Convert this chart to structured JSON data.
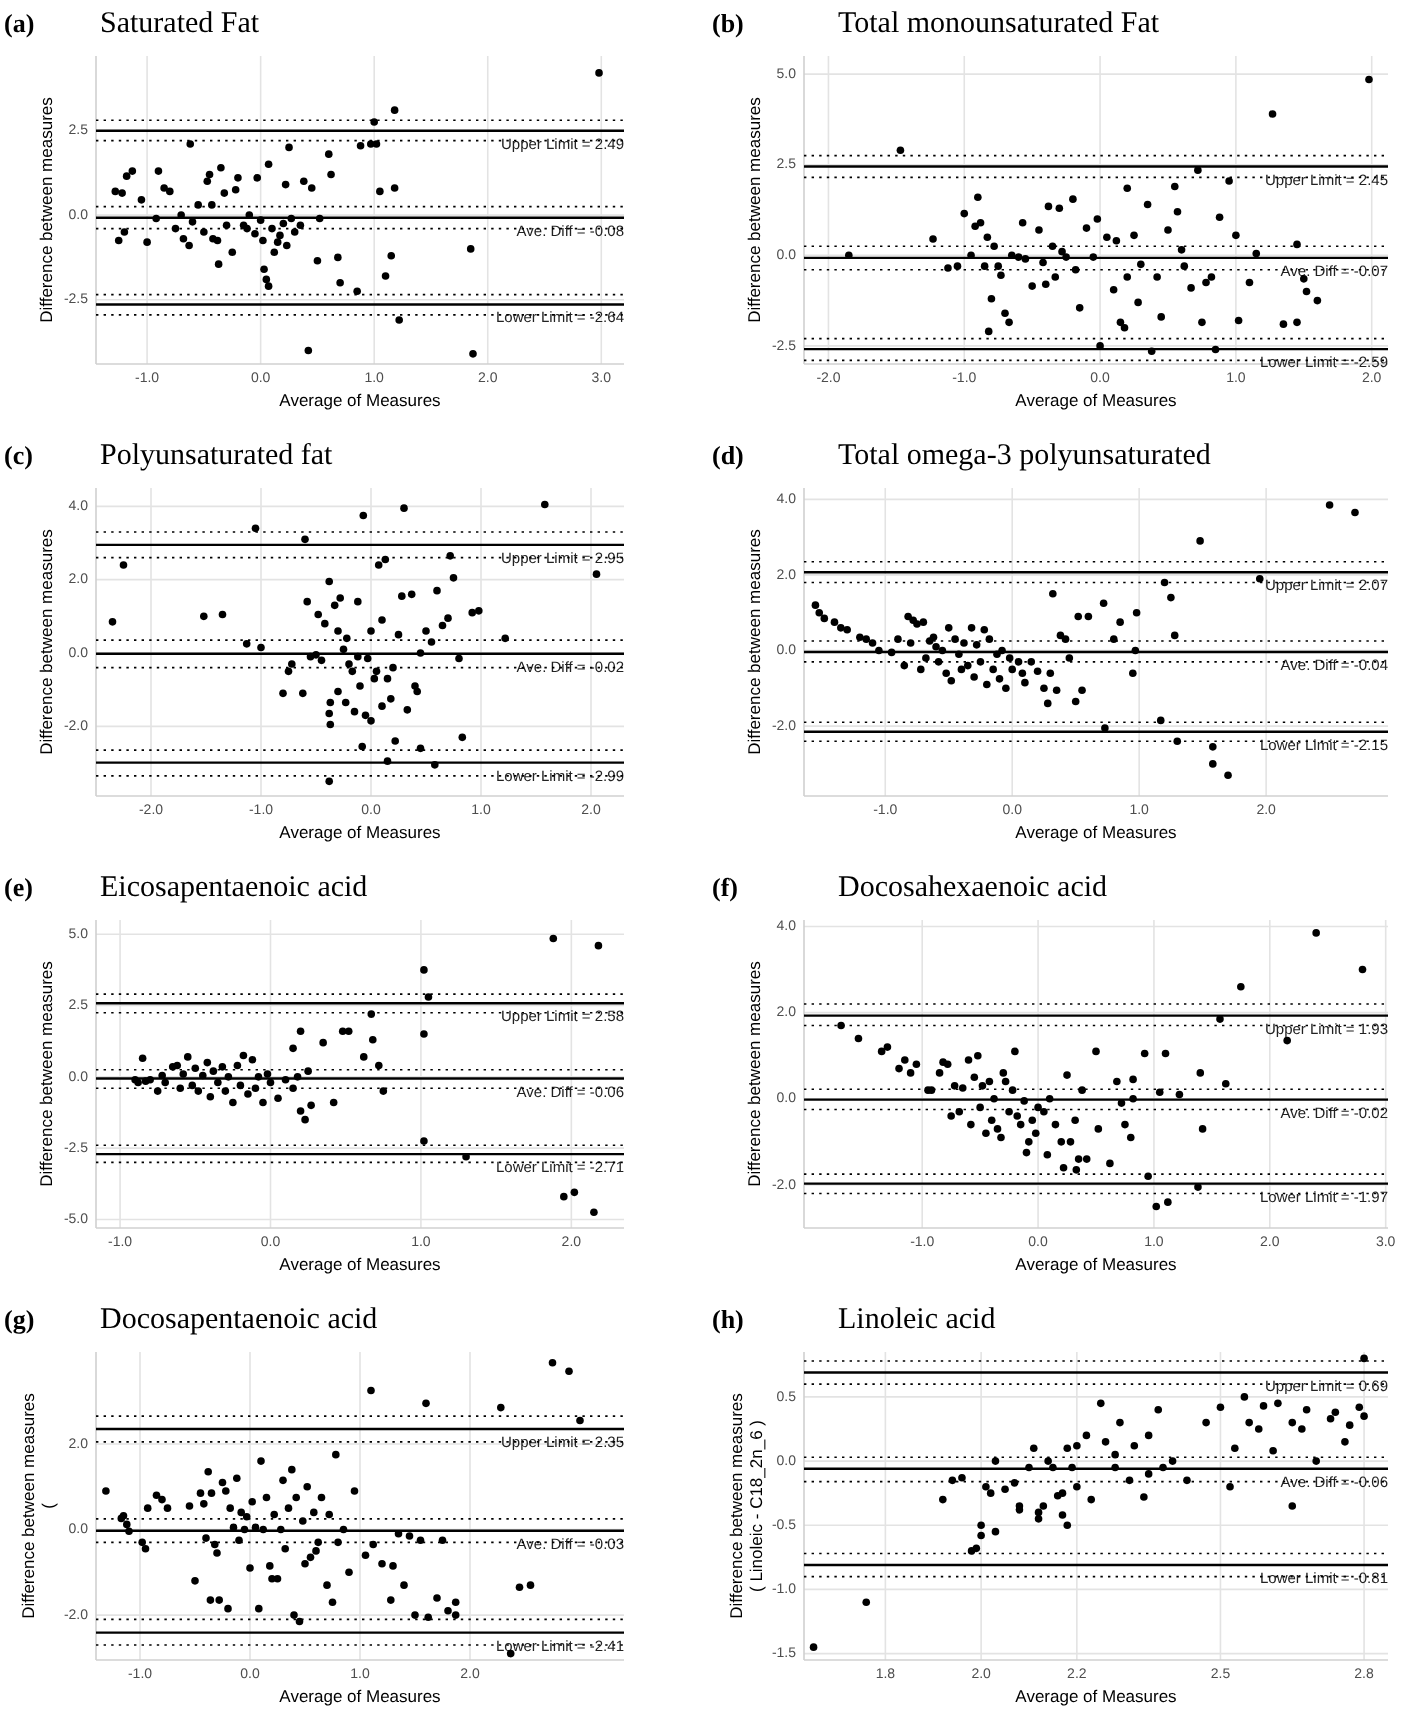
{
  "chart_data": [
    {
      "type": "scatter",
      "annotations": [
        "(a)"
      ],
      "title": "Saturated Fat",
      "xlabel": "Average of Measures",
      "ylabel": "Difference between measures",
      "grid": true,
      "marker": "circle",
      "xlim": [
        -1.45,
        3.2
      ],
      "ylim": [
        -4.4,
        4.7
      ],
      "xticks": [
        {
          "value": -1,
          "label": "-1.0"
        },
        {
          "value": 0,
          "label": "0.0"
        },
        {
          "value": 1,
          "label": "1.0"
        },
        {
          "value": 2,
          "label": "2.0"
        },
        {
          "value": 3,
          "label": "3.0"
        }
      ],
      "yticks": [
        -2.5,
        {
          "value": 0,
          "label": "0.0"
        },
        2.5
      ],
      "ref_lines": [
        {
          "axis": "y",
          "value": 2.49,
          "label": "Upper Limit = 2.49"
        },
        {
          "axis": "y",
          "value": 2.8,
          "line_style": "dotted"
        },
        {
          "axis": "y",
          "value": 2.2,
          "line_style": "dotted"
        },
        {
          "axis": "y",
          "value": -0.08,
          "label": "Ave. Diff = -0.08"
        },
        {
          "axis": "y",
          "value": 0.25,
          "line_style": "dotted"
        },
        {
          "axis": "y",
          "value": -0.4,
          "line_style": "dotted"
        },
        {
          "axis": "y",
          "value": -2.64,
          "label": "Lower Limit = -2.64"
        },
        {
          "axis": "y",
          "value": -2.35,
          "line_style": "dotted"
        },
        {
          "axis": "y",
          "value": -2.95,
          "line_style": "dotted"
        }
      ],
      "series": [
        {
          "color": "#000000",
          "x": [
            -1.28,
            -1.22,
            -1.18,
            -1.13,
            -1.05,
            -1.0,
            -1.25,
            -1.2,
            -0.92,
            -0.9,
            -0.85,
            -0.8,
            -0.75,
            -0.7,
            -0.68,
            -0.63,
            -0.62,
            -0.6,
            -0.55,
            -0.5,
            -0.47,
            -0.45,
            -0.43,
            -0.42,
            -0.38,
            -0.37,
            -0.35,
            -0.32,
            -0.3,
            -0.25,
            -0.22,
            -0.2,
            -0.15,
            -0.12,
            -0.1,
            -0.05,
            -0.03,
            0.0,
            0.02,
            0.03,
            0.05,
            0.07,
            0.07,
            0.1,
            0.12,
            0.15,
            0.17,
            0.2,
            0.22,
            0.23,
            0.25,
            0.27,
            0.3,
            0.35,
            0.38,
            0.45,
            0.42,
            0.5,
            0.52,
            0.6,
            0.62,
            0.68,
            0.7,
            0.85,
            0.88,
            0.97,
            1.0,
            1.02,
            1.05,
            1.1,
            1.15,
            1.18,
            1.18,
            1.22,
            1.85,
            1.87,
            2.98
          ],
          "values": [
            0.7,
            0.65,
            1.15,
            1.3,
            0.45,
            -0.8,
            -0.75,
            -0.5,
            -0.1,
            1.3,
            0.8,
            0.7,
            -0.4,
            0.0,
            -0.7,
            -0.9,
            2.1,
            -0.2,
            0.3,
            -0.5,
            1.0,
            1.2,
            0.3,
            -0.7,
            -0.75,
            -1.45,
            1.4,
            0.65,
            -0.3,
            -1.1,
            0.75,
            1.1,
            -0.3,
            -0.4,
            0.0,
            -0.55,
            1.1,
            -0.15,
            -0.75,
            -1.6,
            -1.9,
            -2.1,
            1.5,
            -0.4,
            -1.1,
            -0.8,
            -0.6,
            -0.25,
            0.9,
            -0.9,
            2.0,
            -0.1,
            -0.5,
            -0.3,
            1.0,
            0.8,
            -4.0,
            -1.35,
            -0.1,
            1.8,
            1.2,
            -1.25,
            -2.0,
            -2.25,
            2.05,
            2.1,
            2.75,
            2.1,
            0.7,
            -1.8,
            -1.2,
            0.8,
            3.1,
            -3.1,
            -1.0,
            -4.1,
            4.2
          ]
        }
      ]
    },
    {
      "type": "scatter",
      "annotations": [
        "(b)"
      ],
      "title": "Total monounsaturated Fat",
      "xlabel": "Average of Measures",
      "ylabel": "Difference between measures",
      "grid": true,
      "marker": "circle",
      "xlim": [
        -2.18,
        2.12
      ],
      "ylim": [
        -3.0,
        5.5
      ],
      "xticks": [
        {
          "value": -2,
          "label": "-2.0"
        },
        {
          "value": -1,
          "label": "-1.0"
        },
        {
          "value": 0,
          "label": "0.0"
        },
        {
          "value": 1,
          "label": "1.0"
        },
        {
          "value": 2,
          "label": "2.0"
        }
      ],
      "yticks": [
        -2.5,
        {
          "value": 0,
          "label": "0.0"
        },
        2.5,
        {
          "value": 5,
          "label": "5.0"
        }
      ],
      "ref_lines": [
        {
          "axis": "y",
          "value": 2.45,
          "label": "Upper Limit = 2.45"
        },
        {
          "axis": "y",
          "value": 2.75,
          "line_style": "dotted"
        },
        {
          "axis": "y",
          "value": 2.15,
          "line_style": "dotted"
        },
        {
          "axis": "y",
          "value": -0.07,
          "label": "Ave. Diff = -0.07"
        },
        {
          "axis": "y",
          "value": 0.25,
          "line_style": "dotted"
        },
        {
          "axis": "y",
          "value": -0.4,
          "line_style": "dotted"
        },
        {
          "axis": "y",
          "value": -2.59,
          "label": "Lower Limit = -2.59"
        },
        {
          "axis": "y",
          "value": -2.3,
          "line_style": "dotted"
        },
        {
          "axis": "y",
          "value": -2.9,
          "line_style": "dotted"
        }
      ],
      "series": [
        {
          "color": "#000000",
          "x": [
            -1.85,
            -1.47,
            -1.23,
            -1.12,
            -1.05,
            -1.0,
            -0.95,
            -0.92,
            -0.9,
            -0.88,
            -0.85,
            -0.83,
            -0.82,
            -0.8,
            -0.78,
            -0.75,
            -0.73,
            -0.7,
            -0.67,
            -0.65,
            -0.6,
            -0.57,
            -0.55,
            -0.5,
            -0.45,
            -0.42,
            -0.4,
            -0.38,
            -0.35,
            -0.33,
            -0.3,
            -0.28,
            -0.25,
            -0.2,
            -0.18,
            -0.15,
            -0.1,
            -0.05,
            -0.02,
            0.0,
            0.05,
            0.1,
            0.12,
            0.15,
            0.18,
            0.2,
            0.2,
            0.25,
            0.28,
            0.3,
            0.35,
            0.38,
            0.42,
            0.45,
            0.5,
            0.55,
            0.57,
            0.6,
            0.62,
            0.67,
            0.72,
            0.75,
            0.78,
            0.82,
            0.85,
            0.88,
            0.95,
            1.0,
            1.02,
            1.1,
            1.15,
            1.27,
            1.35,
            1.45,
            1.45,
            1.5,
            1.52,
            1.6,
            1.98
          ],
          "values": [
            0.0,
            2.9,
            0.45,
            -0.35,
            -0.3,
            1.15,
            0.0,
            0.8,
            1.6,
            0.9,
            -0.3,
            0.5,
            -2.1,
            -1.2,
            0.25,
            -0.3,
            -0.55,
            -1.6,
            -1.85,
            0.0,
            -0.05,
            0.9,
            -0.1,
            -0.85,
            0.7,
            -0.2,
            -0.8,
            1.35,
            0.25,
            -0.6,
            1.3,
            0.1,
            -0.05,
            1.55,
            -0.4,
            -1.45,
            0.75,
            -0.05,
            1.0,
            -2.5,
            0.5,
            -0.95,
            0.4,
            -1.85,
            -2.0,
            1.85,
            -0.6,
            0.55,
            -1.3,
            -0.25,
            1.4,
            -2.65,
            -0.6,
            -1.7,
            0.7,
            1.9,
            1.2,
            0.15,
            -0.3,
            -0.9,
            2.35,
            -1.85,
            -0.75,
            -0.6,
            -2.6,
            1.05,
            2.05,
            0.55,
            -1.8,
            -0.75,
            0.05,
            3.9,
            -1.9,
            0.3,
            -1.85,
            -0.65,
            -1.0,
            -1.25,
            4.85
          ]
        }
      ]
    },
    {
      "type": "scatter",
      "annotations": [
        "(c)"
      ],
      "title": "Polyunsaturated fat",
      "xlabel": "Average of Measures",
      "ylabel": "Difference between measures",
      "grid": true,
      "marker": "circle",
      "xlim": [
        -2.5,
        2.3
      ],
      "ylim": [
        -3.9,
        4.5
      ],
      "xticks": [
        {
          "value": -2,
          "label": "-2.0"
        },
        {
          "value": -1,
          "label": "-1.0"
        },
        {
          "value": 0,
          "label": "0.0"
        },
        {
          "value": 1,
          "label": "1.0"
        },
        {
          "value": 2,
          "label": "2.0"
        }
      ],
      "yticks": [
        {
          "value": -2,
          "label": "-2.0"
        },
        {
          "value": 0,
          "label": "0.0"
        },
        {
          "value": 2,
          "label": "2.0"
        },
        {
          "value": 4,
          "label": "4.0"
        }
      ],
      "ref_lines": [
        {
          "axis": "y",
          "value": 2.95,
          "label": "Upper Limit = 2.95"
        },
        {
          "axis": "y",
          "value": 3.3,
          "line_style": "dotted"
        },
        {
          "axis": "y",
          "value": 2.6,
          "line_style": "dotted"
        },
        {
          "axis": "y",
          "value": -0.02,
          "label": "Ave. Diff = -0.02"
        },
        {
          "axis": "y",
          "value": 0.35,
          "line_style": "dotted"
        },
        {
          "axis": "y",
          "value": -0.4,
          "line_style": "dotted"
        },
        {
          "axis": "y",
          "value": -2.99,
          "label": "Lower Limit = -2.99"
        },
        {
          "axis": "y",
          "value": -2.65,
          "line_style": "dotted"
        },
        {
          "axis": "y",
          "value": -3.35,
          "line_style": "dotted"
        }
      ],
      "series": [
        {
          "color": "#000000",
          "x": [
            -2.35,
            -2.25,
            -1.52,
            -1.35,
            -1.13,
            -1.05,
            -1.0,
            -0.8,
            -0.75,
            -0.72,
            -0.62,
            -0.6,
            -0.58,
            -0.55,
            -0.5,
            -0.48,
            -0.45,
            -0.42,
            -0.38,
            -0.38,
            -0.37,
            -0.37,
            -0.33,
            -0.3,
            -0.3,
            -0.28,
            -0.25,
            -0.23,
            -0.22,
            -0.2,
            -0.17,
            -0.15,
            -0.12,
            -0.12,
            -0.1,
            -0.08,
            -0.07,
            -0.05,
            -0.03,
            0.0,
            0.0,
            0.03,
            0.05,
            0.07,
            0.1,
            0.1,
            0.13,
            0.15,
            0.15,
            0.18,
            0.2,
            0.22,
            0.25,
            0.28,
            0.3,
            0.33,
            0.37,
            0.4,
            0.42,
            0.45,
            0.45,
            0.5,
            0.55,
            0.58,
            0.6,
            0.65,
            0.7,
            0.72,
            0.75,
            0.8,
            0.83,
            0.92,
            0.98,
            1.22,
            1.58,
            2.05,
            -0.38
          ],
          "values": [
            0.85,
            2.4,
            1.0,
            1.05,
            0.25,
            3.4,
            0.15,
            -1.1,
            -0.5,
            -0.3,
            -1.1,
            3.1,
            1.4,
            -0.1,
            -0.05,
            1.05,
            -0.2,
            0.8,
            -1.65,
            1.95,
            -1.35,
            -1.95,
            1.3,
            0.6,
            -1.05,
            1.5,
            0.1,
            -1.35,
            0.4,
            -0.3,
            -0.5,
            -1.6,
            -0.1,
            1.4,
            -0.9,
            -2.55,
            3.75,
            -1.7,
            -0.15,
            -1.85,
            0.6,
            -0.7,
            -0.5,
            2.4,
            -1.45,
            0.9,
            2.55,
            -0.7,
            -2.95,
            -1.25,
            -0.4,
            -2.4,
            0.5,
            1.55,
            3.95,
            -1.55,
            1.6,
            -0.9,
            -1.05,
            -2.6,
            0.0,
            0.6,
            0.3,
            -3.05,
            1.7,
            0.75,
            0.95,
            2.65,
            2.05,
            -0.15,
            -2.3,
            1.1,
            1.15,
            0.4,
            4.05,
            2.15,
            -3.5
          ]
        }
      ]
    },
    {
      "type": "scatter",
      "annotations": [
        "(d)"
      ],
      "title": "Total omega-3 polyunsaturated",
      "xlabel": "Average of Measures",
      "ylabel": "Difference between measures",
      "grid": true,
      "marker": "circle",
      "xlim": [
        -1.64,
        2.96
      ],
      "ylim": [
        -3.85,
        4.3
      ],
      "xticks": [
        {
          "value": -1,
          "label": "-1.0"
        },
        {
          "value": 0,
          "label": "0.0"
        },
        {
          "value": 1,
          "label": "1.0"
        },
        {
          "value": 2,
          "label": "2.0"
        }
      ],
      "yticks": [
        {
          "value": -2,
          "label": "-2.0"
        },
        {
          "value": 0,
          "label": "0.0"
        },
        {
          "value": 2,
          "label": "2.0"
        },
        {
          "value": 4,
          "label": "4.0"
        }
      ],
      "ref_lines": [
        {
          "axis": "y",
          "value": 2.07,
          "label": "Upper Limit = 2.07"
        },
        {
          "axis": "y",
          "value": 2.35,
          "line_style": "dotted"
        },
        {
          "axis": "y",
          "value": 1.8,
          "line_style": "dotted"
        },
        {
          "axis": "y",
          "value": -0.04,
          "label": "Ave. Diff = -0.04"
        },
        {
          "axis": "y",
          "value": 0.25,
          "line_style": "dotted"
        },
        {
          "axis": "y",
          "value": -0.3,
          "line_style": "dotted"
        },
        {
          "axis": "y",
          "value": -2.15,
          "label": "Lower Limit = -2.15"
        },
        {
          "axis": "y",
          "value": -1.9,
          "line_style": "dotted"
        },
        {
          "axis": "y",
          "value": -2.4,
          "line_style": "dotted"
        }
      ],
      "series": [
        {
          "color": "#000000",
          "x": [
            -1.55,
            -1.52,
            -1.48,
            -1.4,
            -1.35,
            -1.3,
            -1.2,
            -1.15,
            -1.1,
            -1.05,
            -0.95,
            -0.9,
            -0.85,
            -0.82,
            -0.8,
            -0.78,
            -0.75,
            -0.72,
            -0.7,
            -0.68,
            -0.65,
            -0.62,
            -0.6,
            -0.58,
            -0.55,
            -0.52,
            -0.5,
            -0.48,
            -0.45,
            -0.42,
            -0.4,
            -0.38,
            -0.35,
            -0.32,
            -0.3,
            -0.28,
            -0.25,
            -0.22,
            -0.2,
            -0.18,
            -0.15,
            -0.12,
            -0.1,
            -0.08,
            -0.05,
            -0.02,
            0.0,
            0.05,
            0.08,
            0.1,
            0.15,
            0.2,
            0.25,
            0.28,
            0.3,
            0.32,
            0.35,
            0.38,
            0.42,
            0.45,
            0.5,
            0.52,
            0.55,
            0.6,
            0.72,
            0.73,
            0.8,
            0.85,
            0.95,
            0.97,
            0.98,
            1.17,
            1.2,
            1.25,
            1.28,
            1.3,
            1.48,
            1.58,
            1.58,
            1.7,
            1.95,
            2.5,
            2.7
          ],
          "values": [
            1.2,
            1.0,
            0.85,
            0.75,
            0.6,
            0.55,
            0.35,
            0.3,
            0.2,
            0.0,
            -0.05,
            0.3,
            -0.4,
            0.9,
            0.2,
            0.8,
            0.7,
            -0.5,
            0.75,
            -0.2,
            0.25,
            0.35,
            0.1,
            -0.3,
            0.0,
            -0.6,
            0.6,
            -0.8,
            0.3,
            -0.1,
            -0.5,
            0.2,
            -0.4,
            0.6,
            -0.7,
            0.15,
            -0.3,
            0.55,
            -0.9,
            0.3,
            -0.5,
            -0.1,
            -0.75,
            0.0,
            -1.0,
            -0.2,
            -0.5,
            -0.3,
            -0.6,
            -0.85,
            -0.3,
            -0.55,
            -1.0,
            -1.4,
            -0.6,
            1.5,
            -1.05,
            0.4,
            0.3,
            -0.2,
            -1.35,
            0.9,
            -1.05,
            0.9,
            1.25,
            -2.05,
            0.3,
            0.75,
            -0.6,
            0.0,
            1.0,
            -1.85,
            1.8,
            1.4,
            0.4,
            -2.4,
            2.9,
            -2.55,
            -3.0,
            -3.3,
            1.9,
            3.85,
            3.65
          ]
        }
      ]
    },
    {
      "type": "scatter",
      "annotations": [
        "(e)"
      ],
      "title": "Eicosapentaenoic acid",
      "xlabel": "Average of Measures",
      "ylabel": "Difference between measures",
      "grid": true,
      "marker": "circle",
      "xlim": [
        -1.16,
        2.35
      ],
      "ylim": [
        -5.3,
        5.5
      ],
      "xticks": [
        {
          "value": -1,
          "label": "-1.0"
        },
        {
          "value": 0,
          "label": "0.0"
        },
        {
          "value": 1,
          "label": "1.0"
        },
        {
          "value": 2,
          "label": "2.0"
        }
      ],
      "yticks": [
        {
          "value": -5,
          "label": "-5.0"
        },
        -2.5,
        {
          "value": 0,
          "label": "0.0"
        },
        2.5,
        {
          "value": 5,
          "label": "5.0"
        }
      ],
      "ref_lines": [
        {
          "axis": "y",
          "value": 2.58,
          "label": "Upper Limit = 2.58"
        },
        {
          "axis": "y",
          "value": 2.9,
          "line_style": "dotted"
        },
        {
          "axis": "y",
          "value": 2.25,
          "line_style": "dotted"
        },
        {
          "axis": "y",
          "value": -0.06,
          "label": "Ave. Diff = -0.06"
        },
        {
          "axis": "y",
          "value": 0.25,
          "line_style": "dotted"
        },
        {
          "axis": "y",
          "value": -0.4,
          "line_style": "dotted"
        },
        {
          "axis": "y",
          "value": -2.71,
          "label": "Lower Limit = -2.71"
        },
        {
          "axis": "y",
          "value": -2.4,
          "line_style": "dotted"
        },
        {
          "axis": "y",
          "value": -3.0,
          "line_style": "dotted"
        }
      ],
      "series": [
        {
          "color": "#000000",
          "x": [
            -0.9,
            -0.88,
            -0.85,
            -0.83,
            -0.8,
            -0.75,
            -0.72,
            -0.7,
            -0.65,
            -0.62,
            -0.6,
            -0.58,
            -0.55,
            -0.52,
            -0.5,
            -0.48,
            -0.45,
            -0.42,
            -0.4,
            -0.38,
            -0.35,
            -0.32,
            -0.3,
            -0.28,
            -0.25,
            -0.22,
            -0.2,
            -0.18,
            -0.15,
            -0.12,
            -0.1,
            -0.08,
            -0.05,
            -0.02,
            0.0,
            0.05,
            0.1,
            0.15,
            0.15,
            0.18,
            0.2,
            0.2,
            0.23,
            0.25,
            0.27,
            0.35,
            0.42,
            0.48,
            0.52,
            0.62,
            0.67,
            0.68,
            0.72,
            0.75,
            1.02,
            1.02,
            1.02,
            1.05,
            1.3,
            1.88,
            1.95,
            2.02,
            2.15,
            2.18
          ],
          "values": [
            -0.1,
            -0.2,
            0.65,
            -0.15,
            -0.1,
            -0.5,
            0.05,
            -0.2,
            0.35,
            0.4,
            -0.4,
            0.1,
            0.7,
            -0.3,
            0.3,
            -0.5,
            0.05,
            0.5,
            -0.7,
            0.2,
            -0.2,
            0.35,
            -0.5,
            0.0,
            -0.9,
            0.4,
            -0.3,
            0.75,
            -0.6,
            0.6,
            -0.4,
            0.0,
            -0.9,
            0.1,
            -0.2,
            -0.75,
            -0.1,
            -0.4,
            1.0,
            0.0,
            1.6,
            -1.2,
            -1.5,
            0.2,
            -1.0,
            1.2,
            -0.9,
            1.6,
            1.6,
            0.7,
            2.2,
            1.3,
            0.4,
            -0.5,
            3.75,
            1.5,
            -2.25,
            2.8,
            -2.8,
            4.85,
            -4.2,
            -4.05,
            -4.75,
            4.6
          ]
        }
      ]
    },
    {
      "type": "scatter",
      "annotations": [
        "(f)"
      ],
      "title": "Docosahexaenoic acid",
      "xlabel": "Average of Measures",
      "ylabel": "Difference between measures",
      "grid": true,
      "marker": "circle",
      "xlim": [
        -2.02,
        3.02
      ],
      "ylim": [
        -3.0,
        4.15
      ],
      "xticks": [
        {
          "value": -1,
          "label": "-1.0"
        },
        {
          "value": 0,
          "label": "0.0"
        },
        {
          "value": 1,
          "label": "1.0"
        },
        {
          "value": 2,
          "label": "2.0"
        },
        {
          "value": 3,
          "label": "3.0"
        }
      ],
      "yticks": [
        {
          "value": -2,
          "label": "-2.0"
        },
        {
          "value": 0,
          "label": "0.0"
        },
        {
          "value": 2,
          "label": "2.0"
        },
        {
          "value": 4,
          "label": "4.0"
        }
      ],
      "ref_lines": [
        {
          "axis": "y",
          "value": 1.93,
          "label": "Upper Limit = 1.93"
        },
        {
          "axis": "y",
          "value": 2.2,
          "line_style": "dotted"
        },
        {
          "axis": "y",
          "value": 1.7,
          "line_style": "dotted"
        },
        {
          "axis": "y",
          "value": -0.02,
          "label": "Ave. Diff = -0.02"
        },
        {
          "axis": "y",
          "value": 0.22,
          "line_style": "dotted"
        },
        {
          "axis": "y",
          "value": -0.25,
          "line_style": "dotted"
        },
        {
          "axis": "y",
          "value": -1.97,
          "label": "Lower Limit = -1.97"
        },
        {
          "axis": "y",
          "value": -1.75,
          "line_style": "dotted"
        },
        {
          "axis": "y",
          "value": -2.2,
          "line_style": "dotted"
        }
      ],
      "series": [
        {
          "color": "#000000",
          "x": [
            -1.7,
            -1.55,
            -1.35,
            -1.3,
            -1.2,
            -1.15,
            -1.1,
            -1.05,
            -0.95,
            -0.92,
            -0.85,
            -0.82,
            -0.78,
            -0.75,
            -0.72,
            -0.68,
            -0.65,
            -0.6,
            -0.58,
            -0.55,
            -0.52,
            -0.5,
            -0.48,
            -0.45,
            -0.42,
            -0.4,
            -0.38,
            -0.35,
            -0.32,
            -0.3,
            -0.28,
            -0.25,
            -0.22,
            -0.2,
            -0.18,
            -0.15,
            -0.12,
            -0.1,
            -0.08,
            -0.05,
            -0.02,
            0.0,
            0.05,
            0.08,
            0.1,
            0.15,
            0.2,
            0.22,
            0.25,
            0.28,
            0.32,
            0.33,
            0.35,
            0.38,
            0.42,
            0.5,
            0.52,
            0.62,
            0.68,
            0.72,
            0.75,
            0.8,
            0.82,
            0.82,
            0.92,
            0.95,
            1.02,
            1.05,
            1.1,
            1.12,
            1.22,
            1.38,
            1.42,
            1.4,
            1.57,
            1.62,
            1.75,
            2.15,
            2.4,
            2.8
          ],
          "values": [
            1.7,
            1.4,
            1.1,
            1.2,
            0.7,
            0.9,
            0.6,
            0.8,
            0.2,
            0.2,
            0.6,
            0.85,
            0.8,
            -0.4,
            0.3,
            -0.3,
            0.25,
            0.9,
            -0.6,
            0.5,
            1.0,
            -0.2,
            0.3,
            -0.8,
            0.4,
            -0.5,
            0.0,
            -0.7,
            -0.9,
            0.6,
            0.4,
            -0.3,
            0.2,
            1.1,
            -0.4,
            -0.6,
            -0.05,
            -1.25,
            -1.0,
            -0.5,
            -0.8,
            -0.2,
            -0.3,
            -1.3,
            0.0,
            -0.6,
            -1.0,
            -1.6,
            0.55,
            -1.0,
            -0.5,
            -1.65,
            -1.4,
            0.2,
            -1.4,
            1.1,
            -0.7,
            -1.5,
            0.4,
            -0.1,
            -0.6,
            -0.9,
            0.45,
            0.0,
            1.05,
            -1.8,
            -2.5,
            0.15,
            1.05,
            -2.4,
            0.1,
            -2.05,
            -0.7,
            0.6,
            1.85,
            0.35,
            2.6,
            1.35,
            3.85,
            3.0
          ]
        }
      ]
    },
    {
      "type": "scatter",
      "annotations": [
        "(g)"
      ],
      "title": "Docosapentaenoic acid",
      "xlabel": "Average of Measures",
      "ylabel": "Difference between measures\n(",
      "grid": true,
      "marker": "circle",
      "xlim": [
        -1.4,
        3.4
      ],
      "ylim": [
        -3.05,
        4.15
      ],
      "xticks": [
        {
          "value": -1,
          "label": "-1.0"
        },
        {
          "value": 0,
          "label": "0.0"
        },
        {
          "value": 1,
          "label": "1.0"
        },
        {
          "value": 2,
          "label": "2.0"
        }
      ],
      "yticks": [
        {
          "value": -2,
          "label": "-2.0"
        },
        {
          "value": 0,
          "label": "0.0"
        },
        {
          "value": 2,
          "label": "2.0"
        }
      ],
      "ref_lines": [
        {
          "axis": "y",
          "value": 2.35,
          "label": "Upper Limit = 2.35"
        },
        {
          "axis": "y",
          "value": 2.65,
          "line_style": "dotted"
        },
        {
          "axis": "y",
          "value": 2.05,
          "line_style": "dotted"
        },
        {
          "axis": "y",
          "value": -0.03,
          "label": "Ave. Diff = -0.03"
        },
        {
          "axis": "y",
          "value": 0.25,
          "line_style": "dotted"
        },
        {
          "axis": "y",
          "value": -0.3,
          "line_style": "dotted"
        },
        {
          "axis": "y",
          "value": -2.41,
          "label": "Lower Limit = -2.41"
        },
        {
          "axis": "y",
          "value": -2.1,
          "line_style": "dotted"
        },
        {
          "axis": "y",
          "value": -2.7,
          "line_style": "dotted"
        }
      ],
      "series": [
        {
          "color": "#000000",
          "x": [
            -1.31,
            -1.17,
            -1.15,
            -1.12,
            -1.1,
            -0.98,
            -0.95,
            -0.93,
            -0.85,
            -0.8,
            -0.75,
            -0.55,
            -0.5,
            -0.45,
            -0.42,
            -0.4,
            -0.38,
            -0.36,
            -0.35,
            -0.32,
            -0.3,
            -0.28,
            -0.25,
            -0.22,
            -0.2,
            -0.18,
            -0.15,
            -0.12,
            -0.1,
            -0.08,
            -0.05,
            -0.03,
            0.0,
            0.02,
            0.05,
            0.08,
            0.1,
            0.12,
            0.15,
            0.18,
            0.2,
            0.22,
            0.25,
            0.28,
            0.3,
            0.32,
            0.35,
            0.38,
            0.4,
            0.42,
            0.45,
            0.48,
            0.5,
            0.52,
            0.55,
            0.58,
            0.6,
            0.62,
            0.65,
            0.7,
            0.72,
            0.75,
            0.78,
            0.8,
            0.85,
            0.9,
            0.95,
            1.05,
            1.1,
            1.12,
            1.2,
            1.28,
            1.3,
            1.35,
            1.4,
            1.45,
            1.5,
            1.55,
            1.6,
            1.62,
            1.7,
            1.75,
            1.8,
            1.87,
            1.87,
            2.28,
            2.37,
            2.45,
            2.55,
            2.75,
            2.9,
            3.0
          ],
          "values": [
            0.9,
            0.26,
            0.32,
            0.12,
            -0.04,
            -0.3,
            -0.45,
            0.5,
            0.8,
            0.7,
            0.5,
            0.55,
            -1.2,
            0.85,
            0.6,
            -0.2,
            1.35,
            -1.65,
            0.85,
            -0.35,
            -0.55,
            -1.65,
            1.1,
            0.9,
            -1.85,
            0.5,
            0.05,
            1.2,
            -0.25,
            0.4,
            0.0,
            0.3,
            -0.9,
            0.65,
            0.05,
            -1.85,
            1.6,
            0.0,
            0.75,
            -0.85,
            -1.15,
            0.35,
            -1.15,
            0.0,
            1.15,
            -0.45,
            0.5,
            1.4,
            -2.0,
            0.75,
            -2.15,
            0.2,
            -0.8,
            1.0,
            -0.65,
            0.4,
            -0.5,
            -0.3,
            0.75,
            -1.3,
            0.35,
            -1.7,
            1.75,
            -0.3,
            0.0,
            -1.0,
            0.9,
            -0.6,
            3.25,
            -0.35,
            -0.8,
            -1.65,
            -0.85,
            -0.1,
            -1.3,
            -0.15,
            -2.0,
            -0.25,
            2.95,
            -2.05,
            -1.6,
            -0.25,
            -1.9,
            -1.7,
            -2.0,
            2.85,
            -2.9,
            -1.35,
            -1.3,
            3.9,
            3.7,
            2.55
          ]
        }
      ]
    },
    {
      "type": "scatter",
      "annotations": [
        "(h)"
      ],
      "title": "Linoleic acid",
      "xlabel": "Average of Measures",
      "ylabel": "Difference between measures\n( Linoleic - C18_2n_6 )",
      "grid": true,
      "marker": "circle",
      "xlim": [
        1.63,
        2.85
      ],
      "ylim": [
        -1.55,
        0.85
      ],
      "xticks": [
        1.8,
        {
          "value": 2,
          "label": "2.0"
        },
        2.2,
        2.5,
        2.8
      ],
      "yticks": [
        -1.5,
        {
          "value": -1,
          "label": "-1.0"
        },
        -0.5,
        {
          "value": 0,
          "label": "0.0"
        },
        0.5
      ],
      "ref_lines": [
        {
          "axis": "y",
          "value": 0.69,
          "label": "Upper Limit = 0.69"
        },
        {
          "axis": "y",
          "value": 0.78,
          "line_style": "dotted"
        },
        {
          "axis": "y",
          "value": 0.6,
          "line_style": "dotted"
        },
        {
          "axis": "y",
          "value": -0.06,
          "label": "Ave. Diff = -0.06"
        },
        {
          "axis": "y",
          "value": 0.03,
          "line_style": "dotted"
        },
        {
          "axis": "y",
          "value": -0.16,
          "line_style": "dotted"
        },
        {
          "axis": "y",
          "value": -0.81,
          "label": "Lower Limit = -0.81"
        },
        {
          "axis": "y",
          "value": -0.72,
          "line_style": "dotted"
        },
        {
          "axis": "y",
          "value": -0.9,
          "line_style": "dotted"
        }
      ],
      "series": [
        {
          "color": "#000000",
          "x": [
            1.65,
            1.76,
            1.92,
            1.94,
            1.96,
            1.98,
            1.99,
            2.0,
            2.0,
            2.01,
            2.02,
            2.03,
            2.03,
            2.05,
            2.07,
            2.08,
            2.08,
            2.1,
            2.11,
            2.12,
            2.12,
            2.13,
            2.14,
            2.15,
            2.16,
            2.17,
            2.17,
            2.18,
            2.18,
            2.19,
            2.2,
            2.2,
            2.22,
            2.23,
            2.25,
            2.26,
            2.28,
            2.28,
            2.29,
            2.31,
            2.32,
            2.34,
            2.35,
            2.35,
            2.37,
            2.38,
            2.4,
            2.43,
            2.47,
            2.5,
            2.52,
            2.53,
            2.55,
            2.56,
            2.58,
            2.59,
            2.61,
            2.62,
            2.65,
            2.65,
            2.67,
            2.68,
            2.7,
            2.73,
            2.74,
            2.76,
            2.77,
            2.79,
            2.8,
            2.8
          ],
          "values": [
            -1.45,
            -1.1,
            -0.3,
            -0.15,
            -0.13,
            -0.7,
            -0.68,
            -0.5,
            -0.58,
            -0.2,
            -0.25,
            -0.55,
            0.0,
            -0.22,
            -0.17,
            -0.35,
            -0.38,
            -0.05,
            0.1,
            -0.4,
            -0.45,
            -0.35,
            0.0,
            -0.05,
            -0.27,
            -0.25,
            -0.42,
            -0.5,
            0.1,
            -0.05,
            0.12,
            -0.2,
            0.2,
            -0.3,
            0.45,
            0.15,
            0.05,
            -0.05,
            0.3,
            -0.15,
            0.12,
            -0.28,
            0.2,
            -0.1,
            0.4,
            -0.05,
            0.0,
            -0.15,
            0.3,
            0.42,
            -0.2,
            0.1,
            0.5,
            0.3,
            0.25,
            0.43,
            0.08,
            0.45,
            0.3,
            -0.35,
            0.25,
            0.4,
            0.0,
            0.33,
            0.38,
            0.15,
            0.28,
            0.42,
            0.8,
            0.35
          ]
        }
      ]
    }
  ]
}
